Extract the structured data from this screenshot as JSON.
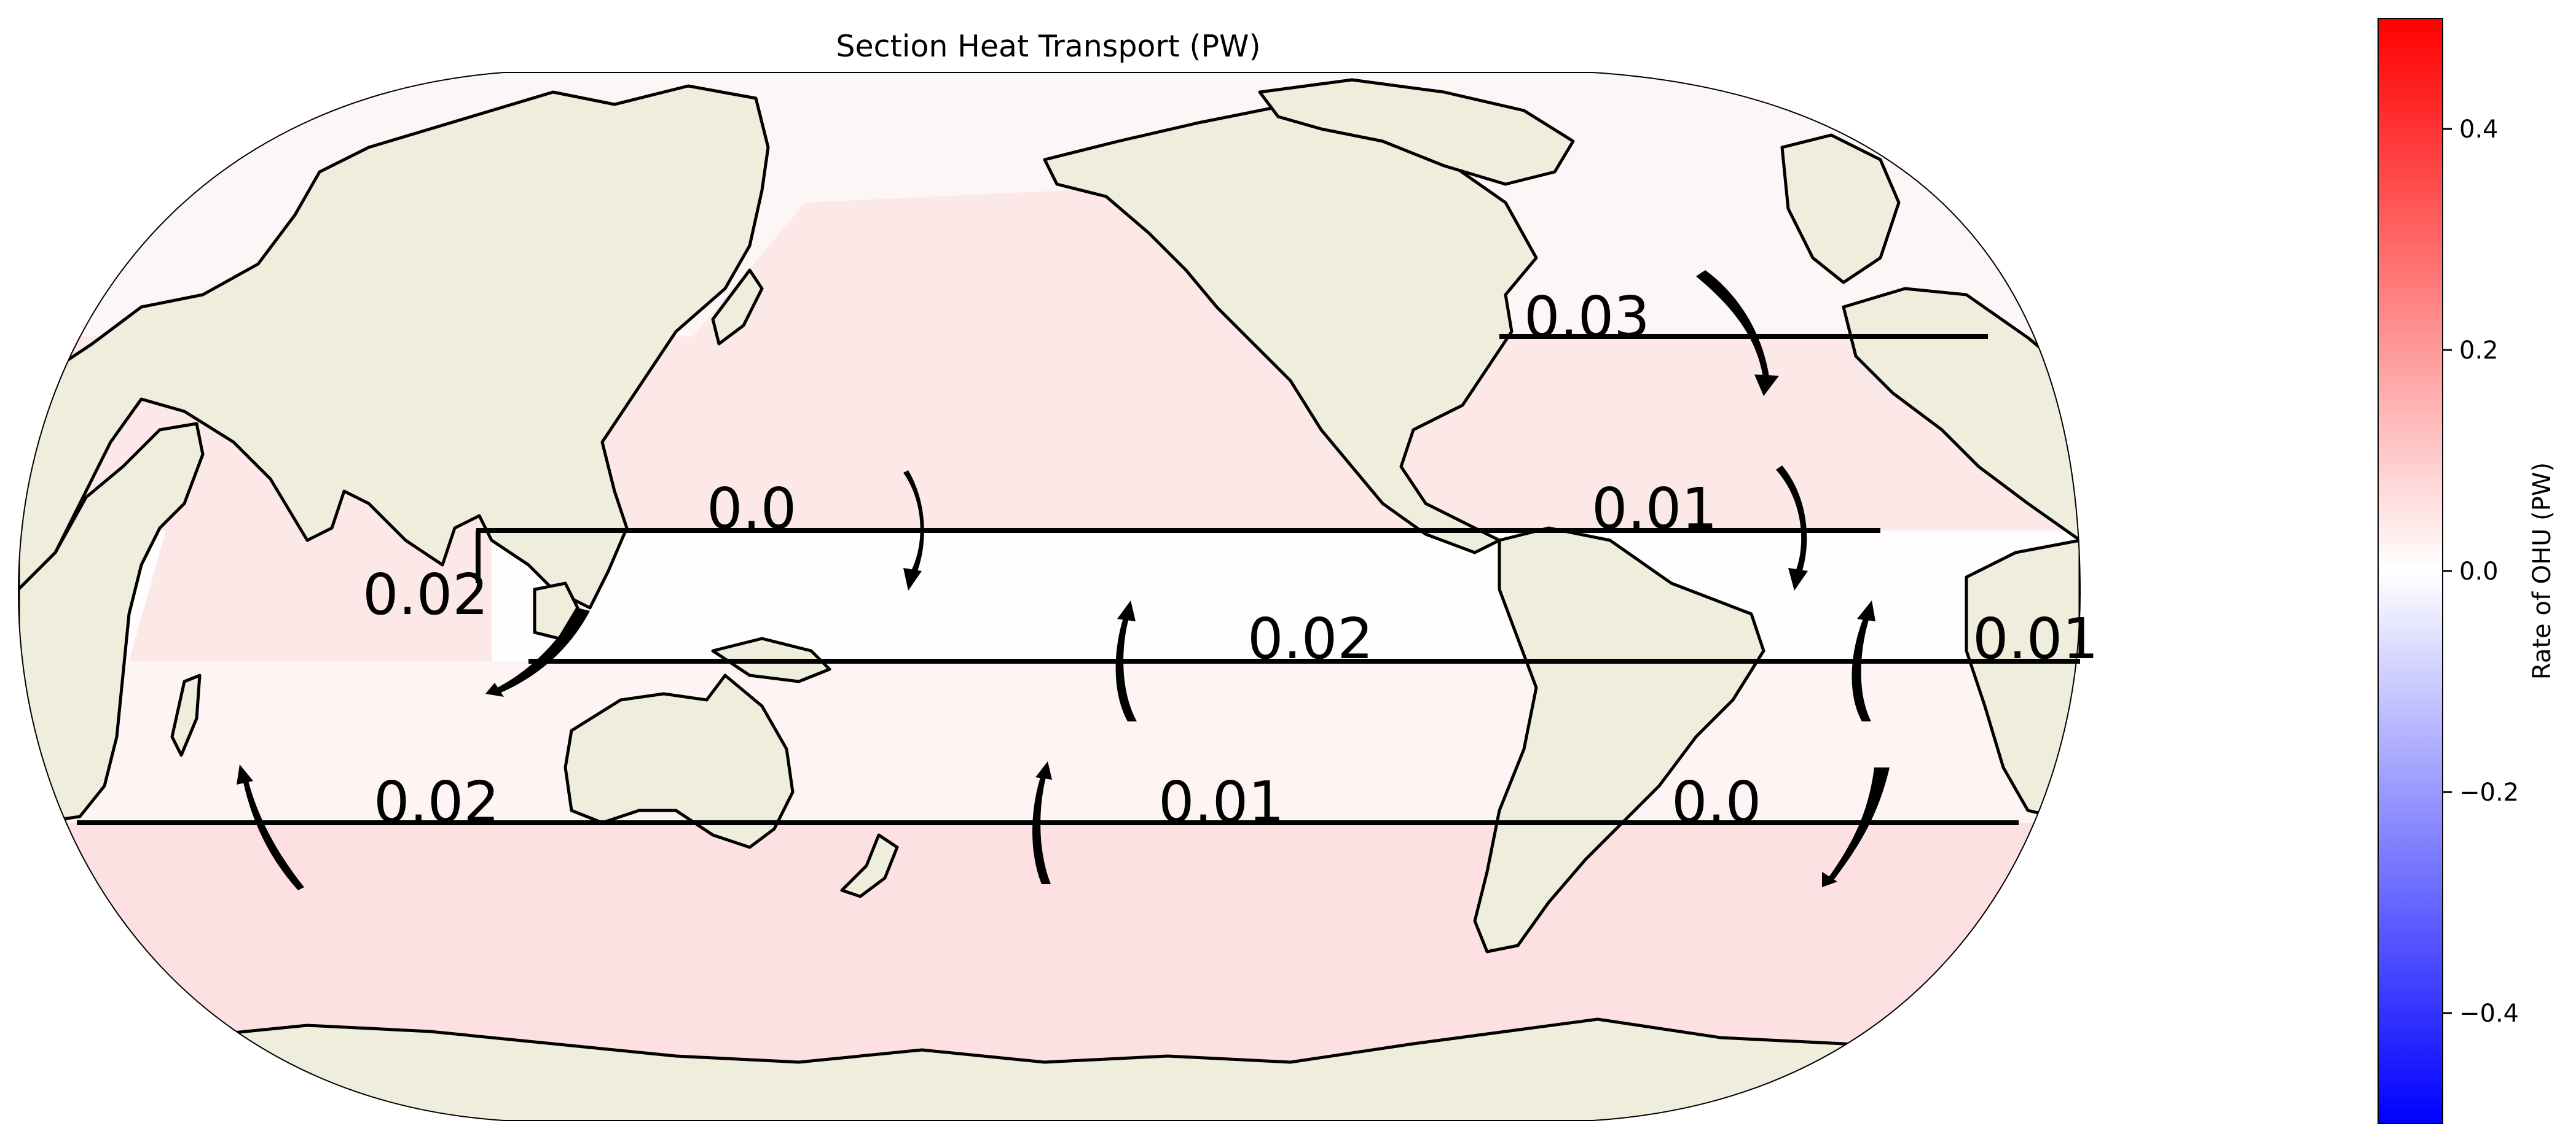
{
  "title": "Section Heat Transport (PW)",
  "colorbar": {
    "label": "Rate of OHU (PW)",
    "min": -0.5,
    "max": 0.5,
    "colormap": "bwr",
    "colors": {
      "low": "#0000ff",
      "mid": "#ffffff",
      "high": "#ff0000"
    },
    "ticks": [
      "0.4",
      "0.2",
      "0.0",
      "−0.2",
      "−0.4"
    ]
  },
  "map": {
    "projection": "Robinson",
    "land_color": "#efeedc",
    "coastline_color": "#000000",
    "sections": [
      {
        "id": "north-atlantic-26n",
        "label": "0.03"
      },
      {
        "id": "pacific-10n",
        "label": "0.0"
      },
      {
        "id": "atlantic-10n",
        "label": "0.01"
      },
      {
        "id": "indonesia-throughflow",
        "label": "0.02"
      },
      {
        "id": "pacific-15s",
        "label": "0.02"
      },
      {
        "id": "atlantic-15s",
        "label": "0.01"
      },
      {
        "id": "indian-30s",
        "label": "0.02"
      },
      {
        "id": "pacific-30s",
        "label": "0.01"
      },
      {
        "id": "atlantic-30s",
        "label": "0.0"
      }
    ],
    "region_fills": [
      {
        "id": "arctic-to-26n",
        "value": 0.01,
        "color": "#fdf6f6"
      },
      {
        "id": "26n-to-10n",
        "value": 0.03,
        "color": "#fde8e8"
      },
      {
        "id": "10n-to-15s",
        "value": 0.003,
        "color": "#fffdfd"
      },
      {
        "id": "15s-to-30s",
        "value": 0.01,
        "color": "#fef4f4"
      },
      {
        "id": "south-of-30s",
        "value": 0.04,
        "color": "#fde0e1"
      }
    ]
  }
}
